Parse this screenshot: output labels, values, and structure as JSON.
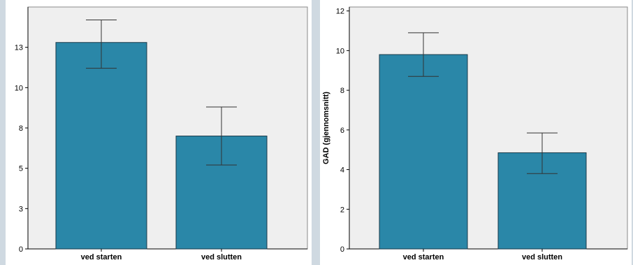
{
  "colors": {
    "background_frame": "#cfd9e1",
    "plot_area": "#efefef",
    "bar_fill": "#2a87a8",
    "bar_stroke": "#1a3a4a"
  },
  "chart_data": [
    {
      "type": "bar",
      "categories": [
        "ved starten",
        "ved slutten"
      ],
      "values": [
        12.8,
        7.0
      ],
      "error_low": [
        11.2,
        5.2
      ],
      "error_high": [
        14.2,
        8.8
      ],
      "ylabel": "",
      "ylim": [
        0,
        15
      ],
      "yticks": [
        0,
        2.5,
        5,
        7.5,
        10,
        12.5
      ],
      "ytick_labels": [
        "0",
        "3",
        "5",
        "8",
        "10",
        "13"
      ],
      "grid": false
    },
    {
      "type": "bar",
      "categories": [
        "ved starten",
        "ved slutten"
      ],
      "values": [
        9.8,
        4.85
      ],
      "error_low": [
        8.7,
        3.8
      ],
      "error_high": [
        10.9,
        5.85
      ],
      "ylabel": "GAD (gjennomsnitt)",
      "ylim": [
        0,
        12.2
      ],
      "yticks": [
        0,
        2,
        4,
        6,
        8,
        10,
        12
      ],
      "ytick_labels": [
        "0",
        "2",
        "4",
        "6",
        "8",
        "10",
        "12"
      ],
      "grid": false
    }
  ]
}
